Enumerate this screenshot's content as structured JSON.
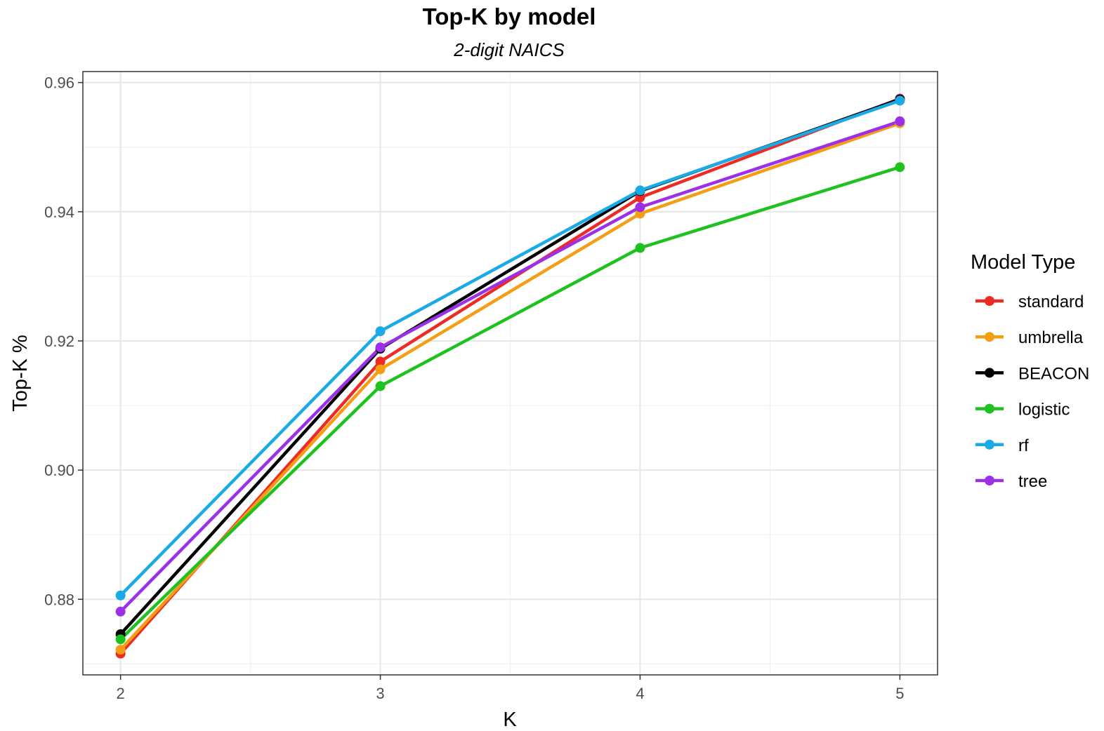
{
  "chart_data": {
    "type": "line",
    "title": "Top-K by model",
    "subtitle": "2-digit NAICS",
    "xlabel": "K",
    "ylabel": "Top-K %",
    "x": [
      2,
      3,
      4,
      5
    ],
    "xlim": [
      1.855,
      5.145
    ],
    "ylim": [
      0.8683,
      0.9617
    ],
    "x_ticks": [
      2,
      3,
      4,
      5
    ],
    "x_tick_labels": [
      "2",
      "3",
      "4",
      "5"
    ],
    "y_ticks": [
      0.88,
      0.9,
      0.92,
      0.94,
      0.96
    ],
    "y_tick_labels": [
      "0.88",
      "0.90",
      "0.92",
      "0.94",
      "0.96"
    ],
    "grid": true,
    "legend": {
      "title": "Model Type",
      "position": "right"
    },
    "series": [
      {
        "name": "standard",
        "color": "#ee2a24",
        "values": [
          0.8716,
          0.9168,
          0.9422,
          0.9575
        ]
      },
      {
        "name": "umbrella",
        "color": "#f59d14",
        "values": [
          0.8722,
          0.9156,
          0.9397,
          0.9537
        ]
      },
      {
        "name": "BEACON",
        "color": "#000000",
        "values": [
          0.8746,
          0.9188,
          0.9432,
          0.9574
        ]
      },
      {
        "name": "logistic",
        "color": "#1ec21e",
        "values": [
          0.8738,
          0.913,
          0.9344,
          0.9469
        ]
      },
      {
        "name": "rf",
        "color": "#1aaae6",
        "values": [
          0.8806,
          0.9215,
          0.9433,
          0.9572
        ]
      },
      {
        "name": "tree",
        "color": "#9b30e8",
        "values": [
          0.8781,
          0.919,
          0.9407,
          0.954
        ]
      }
    ]
  }
}
